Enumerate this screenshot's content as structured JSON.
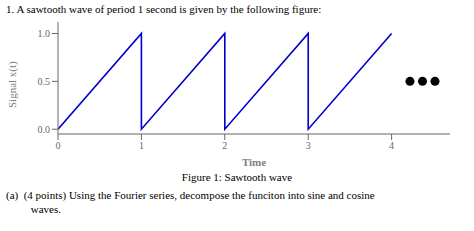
{
  "chart_data": {
    "type": "line",
    "title": "1.  A sawtooth wave of period 1 second is given by the following figure:",
    "xlabel": "Time",
    "ylabel": "Signal x(t)",
    "xlim": [
      0,
      4.7
    ],
    "ylim": [
      -0.05,
      1.12
    ],
    "xticks": [
      0,
      1,
      2,
      3,
      4
    ],
    "yticks": [
      {
        "value": 0,
        "label": "0.0"
      },
      {
        "value": 0.5,
        "label": "0.5"
      },
      {
        "value": 1,
        "label": "1.0"
      }
    ],
    "grid": false,
    "series": [
      {
        "type": "line",
        "color": "#0000cc",
        "x": [
          0,
          1,
          1,
          2,
          2,
          3,
          3,
          4
        ],
        "values": [
          0,
          1,
          0,
          1,
          0,
          1,
          0,
          1
        ]
      },
      {
        "type": "scatter",
        "color": "#000000",
        "marker": "circle",
        "x": [
          4.22,
          4.37,
          4.52
        ],
        "values": [
          0.5,
          0.5,
          0.5
        ]
      }
    ],
    "annotations": [
      "Figure 1: Sawtooth wave",
      "(a)  (4 points) Using the Fourier series, decompose the funciton into sine and cosine",
      "         waves."
    ]
  }
}
